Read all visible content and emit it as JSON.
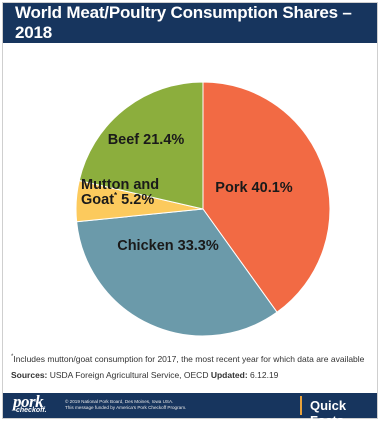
{
  "header": {
    "title": "World Meat/Poultry Consumption Shares – 2018"
  },
  "chart_data": {
    "type": "pie",
    "slices": [
      {
        "name": "Pork",
        "label": "Pork 40.1%",
        "value": 40.1,
        "color": "#f26a44"
      },
      {
        "name": "Chicken",
        "label": "Chicken 33.3%",
        "value": 33.3,
        "color": "#6b9aaa"
      },
      {
        "name": "Mutton and Goat*",
        "label_line1": "Mutton and",
        "label_line2_main": "Goat",
        "label_line2_sup": "*",
        "label_line2_rest": " 5.2%",
        "value": 5.2,
        "color": "#fcca5d"
      },
      {
        "name": "Beef",
        "label": "Beef 21.4%",
        "value": 21.4,
        "color": "#8cae3d"
      }
    ]
  },
  "footnote": {
    "marker": "*",
    "text": "Includes mutton/goat consumption for 2017, the most recent year for which data are available"
  },
  "sources": {
    "label": "Sources:",
    "text": " USDA Foreign Agricultural Service, OECD ",
    "updated_label": "Updated:",
    "updated_value": " 6.12.19"
  },
  "footer": {
    "logo_word": "pork",
    "logo_sub": "checkoff.",
    "legal_line1": "© 2019 National Pork Board, Des Moines, Iowa USA.",
    "legal_line2": "This message funded by America's Pork Checkoff Program.",
    "quick_facts": "Quick Facts"
  },
  "colors": {
    "brand_navy": "#17355e",
    "accent_orange": "#e8a23c"
  }
}
